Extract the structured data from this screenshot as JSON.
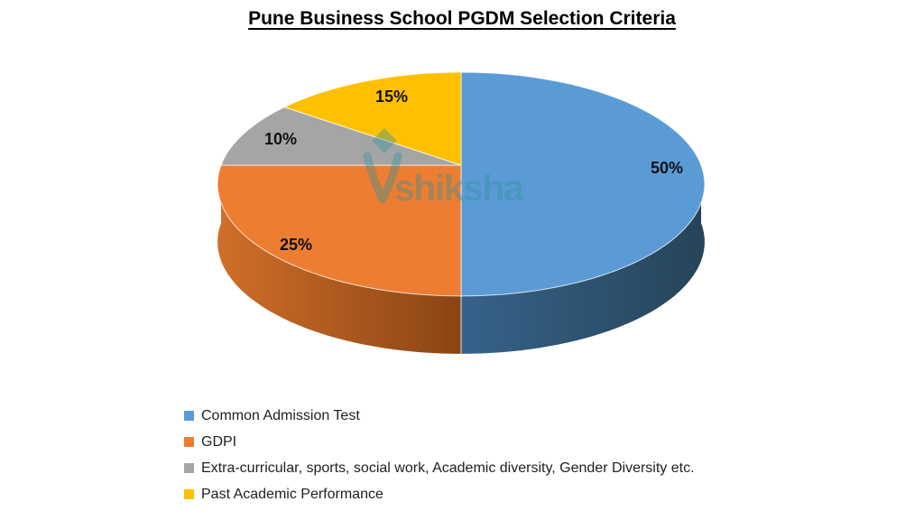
{
  "title": "Pune Business School PGDM Selection Criteria",
  "watermark": {
    "text": "shiksha",
    "color": "#2E93A3"
  },
  "chart_data": {
    "type": "pie",
    "effect": "3d",
    "title": "Pune Business School PGDM Selection Criteria",
    "unit": "percent",
    "start_angle_deg": 0,
    "direction": "clockwise",
    "legend_position": "bottom-left",
    "background": "#FFFFFF",
    "data_label_color": "#111111",
    "categories": [
      "Common Admission Test",
      "GDPI",
      "Extra-curricular, sports, social work, Academic diversity, Gender Diversity etc.",
      "Past Academic Performance"
    ],
    "values": [
      50,
      25,
      10,
      15
    ],
    "slices": [
      {
        "label": "Common Admission Test",
        "value": 50,
        "data_label": "50%",
        "color": "#5B9BD5",
        "side_light": "#36628A",
        "side_dark": "#264459"
      },
      {
        "label": "GDPI",
        "value": 25,
        "data_label": "25%",
        "color": "#ED7D31",
        "side_light": "#D06F2A",
        "side_dark": "#8A4413"
      },
      {
        "label": "Extra-curricular, sports, social work, Academic diversity, Gender Diversity etc.",
        "value": 10,
        "data_label": "10%",
        "color": "#A5A5A5",
        "side_light": "#7F7F7F",
        "side_dark": "#6E6E6E"
      },
      {
        "label": "Past Academic Performance",
        "value": 15,
        "data_label": "15%",
        "color": "#FFC000",
        "side_light": "#BF9000",
        "side_dark": "#997300"
      }
    ]
  }
}
